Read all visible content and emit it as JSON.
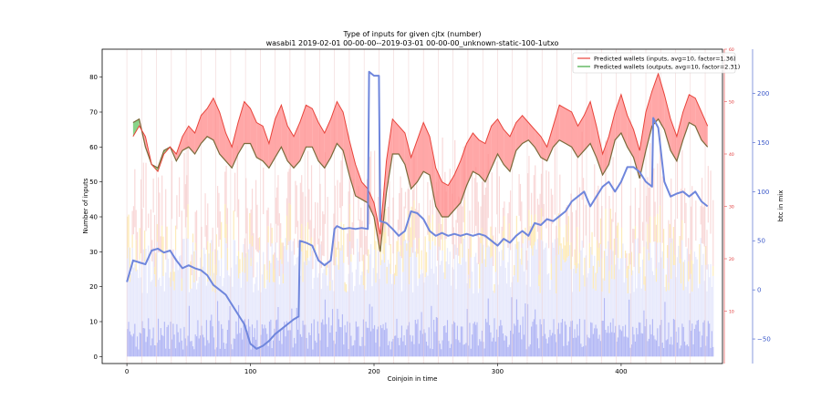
{
  "chart_data": {
    "type": "line",
    "title": "Type of inputs for given cjtx (number)",
    "subtitle": "wasabi1 2019-02-01 00-00-00--2019-03-01 00-00-00_unknown-static-100-1utxo",
    "xlabel": "Coinjoin in time",
    "ylabel": "Number of inputs",
    "ylabel_right": "btc in mix",
    "xlim": [
      -20,
      482
    ],
    "ylim": [
      -2,
      88
    ],
    "ylim_right_inner": [
      0,
      60
    ],
    "ylim_right_outer": [
      -75,
      245
    ],
    "x_ticks": [
      "0",
      "100",
      "200",
      "300",
      "400"
    ],
    "y_ticks": [
      "0",
      "10",
      "20",
      "30",
      "40",
      "50",
      "60",
      "70",
      "80"
    ],
    "y_ticks_right_inner": [
      "10",
      "20",
      "30",
      "40",
      "50",
      "60"
    ],
    "y_ticks_right_outer": [
      "−50",
      "0",
      "50",
      "100",
      "150",
      "200"
    ],
    "colors": {
      "inputs_line": "#e8433a",
      "inputs_fill": "#ff8a8a",
      "outputs_line": "#3ea83e",
      "outputs_fill": "#6cc96c",
      "btc_line": "#6f86dc",
      "bars_blue": "#b3b8f5",
      "bars_yellow": "#fde6a8",
      "bars_pink": "#f7c9c9",
      "bars_lavender": "#e3e5fb",
      "right_inner_axis": "#e03030",
      "right_outer_axis": "#3b58c9"
    },
    "legend_position": "top-right",
    "series": [
      {
        "name": "Predicted wallets (inputs, avg=10, factor=1.36)",
        "axis": "left",
        "x": [
          5,
          10,
          15,
          20,
          25,
          30,
          35,
          40,
          45,
          50,
          55,
          60,
          65,
          70,
          75,
          80,
          85,
          90,
          95,
          100,
          105,
          110,
          115,
          120,
          125,
          130,
          135,
          140,
          145,
          150,
          155,
          160,
          165,
          170,
          175,
          180,
          185,
          190,
          195,
          200,
          205,
          210,
          215,
          220,
          225,
          230,
          235,
          240,
          245,
          250,
          255,
          260,
          265,
          270,
          275,
          280,
          285,
          290,
          295,
          300,
          305,
          310,
          315,
          320,
          325,
          330,
          335,
          340,
          345,
          350,
          355,
          360,
          365,
          370,
          375,
          380,
          385,
          390,
          395,
          400,
          405,
          410,
          415,
          420,
          425,
          430,
          435,
          440,
          445,
          450,
          455,
          460,
          465,
          470
        ],
        "values": [
          63,
          66,
          63,
          55,
          53,
          58,
          60,
          58,
          63,
          66,
          64,
          69,
          71,
          74,
          70,
          64,
          60,
          67,
          73,
          71,
          67,
          66,
          61,
          68,
          72,
          66,
          63,
          67,
          72,
          71,
          67,
          64,
          68,
          73,
          70,
          62,
          55,
          50,
          48,
          44,
          35,
          56,
          68,
          66,
          64,
          57,
          62,
          67,
          63,
          54,
          50,
          49,
          52,
          56,
          61,
          64,
          62,
          61,
          66,
          68,
          65,
          63,
          67,
          69,
          67,
          65,
          63,
          60,
          66,
          72,
          71,
          70,
          66,
          69,
          73,
          66,
          58,
          63,
          70,
          75,
          69,
          65,
          59,
          70,
          76,
          81,
          75,
          68,
          63,
          70,
          75,
          74,
          70,
          66
        ]
      },
      {
        "name": "Predicted wallets (outputs, avg=10, factor=2.31)",
        "axis": "left",
        "x": [
          5,
          10,
          15,
          20,
          25,
          30,
          35,
          40,
          45,
          50,
          55,
          60,
          65,
          70,
          75,
          80,
          85,
          90,
          95,
          100,
          105,
          110,
          115,
          120,
          125,
          130,
          135,
          140,
          145,
          150,
          155,
          160,
          165,
          170,
          175,
          180,
          185,
          190,
          195,
          200,
          205,
          210,
          215,
          220,
          225,
          230,
          235,
          240,
          245,
          250,
          255,
          260,
          265,
          270,
          275,
          280,
          285,
          290,
          295,
          300,
          305,
          310,
          315,
          320,
          325,
          330,
          335,
          340,
          345,
          350,
          355,
          360,
          365,
          370,
          375,
          380,
          385,
          390,
          395,
          400,
          405,
          410,
          415,
          420,
          425,
          430,
          435,
          440,
          445,
          450,
          455,
          460,
          465,
          470
        ],
        "values": [
          67,
          68,
          60,
          55,
          54,
          59,
          60,
          56,
          59,
          60,
          58,
          61,
          63,
          62,
          58,
          56,
          54,
          58,
          61,
          61,
          57,
          56,
          54,
          57,
          60,
          56,
          54,
          56,
          60,
          60,
          56,
          54,
          57,
          61,
          59,
          52,
          46,
          45,
          44,
          40,
          30,
          47,
          58,
          58,
          55,
          48,
          50,
          53,
          52,
          43,
          40,
          40,
          42,
          44,
          49,
          53,
          52,
          50,
          54,
          58,
          55,
          53,
          59,
          61,
          62,
          60,
          57,
          56,
          60,
          62,
          61,
          60,
          57,
          59,
          61,
          57,
          52,
          55,
          62,
          64,
          60,
          57,
          51,
          59,
          66,
          68,
          65,
          59,
          56,
          62,
          67,
          66,
          62,
          60
        ]
      },
      {
        "name": "btc in mix",
        "axis": "right-outer",
        "x": [
          0,
          5,
          10,
          15,
          20,
          25,
          30,
          35,
          40,
          45,
          50,
          55,
          60,
          65,
          70,
          75,
          80,
          85,
          90,
          95,
          100,
          105,
          110,
          115,
          120,
          125,
          130,
          135,
          139,
          140,
          145,
          150,
          155,
          160,
          165,
          168,
          170,
          175,
          180,
          185,
          190,
          195,
          196,
          200,
          204,
          205,
          210,
          215,
          220,
          225,
          230,
          235,
          240,
          245,
          250,
          255,
          260,
          265,
          270,
          275,
          280,
          285,
          290,
          295,
          300,
          305,
          310,
          315,
          320,
          325,
          330,
          335,
          340,
          345,
          350,
          355,
          360,
          365,
          370,
          375,
          380,
          385,
          390,
          395,
          400,
          405,
          410,
          415,
          420,
          425,
          426,
          430,
          435,
          440,
          445,
          450,
          455,
          460,
          465,
          470
        ],
        "values": [
          8,
          30,
          28,
          26,
          40,
          42,
          38,
          40,
          30,
          22,
          25,
          22,
          20,
          15,
          5,
          0,
          -5,
          -15,
          -25,
          -35,
          -55,
          -60,
          -57,
          -52,
          -45,
          -40,
          -35,
          -30,
          -27,
          50,
          48,
          45,
          30,
          25,
          30,
          62,
          65,
          62,
          63,
          62,
          63,
          62,
          222,
          218,
          218,
          70,
          68,
          62,
          55,
          60,
          80,
          78,
          72,
          60,
          55,
          58,
          55,
          57,
          55,
          57,
          55,
          57,
          55,
          50,
          45,
          52,
          48,
          55,
          60,
          55,
          68,
          66,
          72,
          70,
          75,
          80,
          90,
          95,
          100,
          85,
          95,
          105,
          110,
          100,
          110,
          125,
          125,
          120,
          110,
          105,
          175,
          165,
          110,
          95,
          98,
          100,
          95,
          100,
          90,
          85
        ]
      }
    ]
  }
}
